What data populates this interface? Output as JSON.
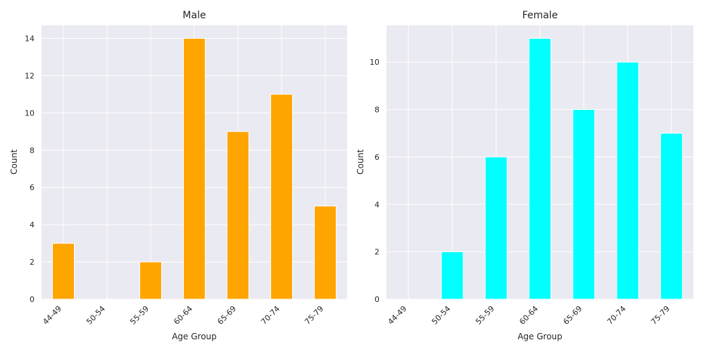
{
  "chart_data": [
    {
      "type": "bar",
      "title": "Male",
      "xlabel": "Age Group",
      "ylabel": "Count",
      "categories": [
        "44-49",
        "50-54",
        "55-59",
        "60-64",
        "65-69",
        "70-74",
        "75-79"
      ],
      "values": [
        3,
        0,
        2,
        14,
        9,
        11,
        5
      ],
      "ylim": [
        0,
        14.7
      ],
      "yticks": [
        "0",
        "2",
        "4",
        "6",
        "8",
        "10",
        "12",
        "14"
      ],
      "color": "#FFA500",
      "grid": true,
      "background": "#EAEAF2"
    },
    {
      "type": "bar",
      "title": "Female",
      "xlabel": "Age Group",
      "ylabel": "Count",
      "categories": [
        "44-49",
        "50-54",
        "55-59",
        "60-64",
        "65-69",
        "70-74",
        "75-79"
      ],
      "values": [
        0,
        2,
        6,
        11,
        8,
        10,
        7
      ],
      "ylim": [
        0,
        11.55
      ],
      "yticks": [
        "0",
        "2",
        "4",
        "6",
        "8",
        "10"
      ],
      "color": "#00FFFF",
      "grid": true,
      "background": "#EAEAF2"
    }
  ]
}
